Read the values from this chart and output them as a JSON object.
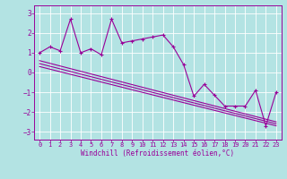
{
  "xlabel": "Windchill (Refroidissement éolien,°C)",
  "bg_color": "#b3e3e3",
  "line_color": "#990099",
  "grid_color": "#ffffff",
  "xlim": [
    -0.5,
    23.5
  ],
  "ylim": [
    -3.4,
    3.4
  ],
  "yticks": [
    -3,
    -2,
    -1,
    0,
    1,
    2,
    3
  ],
  "xticks": [
    0,
    1,
    2,
    3,
    4,
    5,
    6,
    7,
    8,
    9,
    10,
    11,
    12,
    13,
    14,
    15,
    16,
    17,
    18,
    19,
    20,
    21,
    22,
    23
  ],
  "series1_x": [
    0,
    1,
    2,
    3,
    4,
    5,
    6,
    7,
    8,
    9,
    10,
    11,
    12,
    13,
    14,
    15,
    16,
    17,
    18,
    19,
    20,
    21,
    22,
    23
  ],
  "series1_y": [
    1.0,
    1.3,
    1.1,
    2.7,
    1.0,
    1.2,
    0.9,
    2.7,
    1.5,
    1.6,
    1.7,
    1.8,
    1.9,
    1.3,
    0.4,
    -1.2,
    -0.6,
    -1.15,
    -1.7,
    -1.7,
    -1.7,
    -0.9,
    -2.7,
    -1.0
  ],
  "series2_x": [
    0,
    23
  ],
  "series2_y": [
    0.6,
    -2.5
  ],
  "series3_x": [
    0,
    23
  ],
  "series3_y": [
    0.45,
    -2.6
  ],
  "series4_x": [
    0,
    23
  ],
  "series4_y": [
    0.3,
    -2.7
  ]
}
